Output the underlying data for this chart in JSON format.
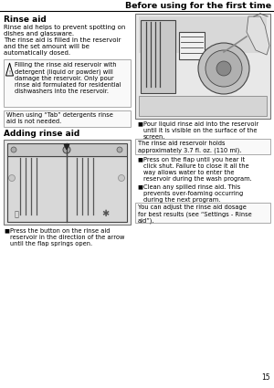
{
  "page_title": "Before using for the first time",
  "bg_color": "#ffffff",
  "section1_title": "Rinse aid",
  "section1_body": "Rinse aid helps to prevent spotting on\ndishes and glassware.\nThe rinse aid is filled in the reservoir\nand the set amount will be\nautomatically dosed.",
  "warning_text": "Filling the rinse aid reservoir with\ndetergent (liquid or powder) will\ndamage the reservoir. Only pour\nrinse aid formulated for residential\ndishwashers into the reservoir.",
  "tab_box_text": "When using “Tab” detergents rinse\naid is not needed.",
  "section2_title": "Adding rinse aid",
  "bullet1": "Press the button on the rinse aid\nreservoir in the direction of the arrow\nuntil the flap springs open.",
  "right_bullet1": "Pour liquid rinse aid into the reservoir\nuntil it is visible on the surface of the\nscreen.",
  "info_box1": "The rinse aid reservoir holds\napproximately 3.7 fl. oz. (110 ml).",
  "right_bullet2": "Press on the flap until you hear it\nclick shut. Failure to close it all the\nway allows water to enter the\nreservoir during the wash program.",
  "right_bullet3": "Clean any spilled rinse aid. This\nprevents over-foaming occurring\nduring the next program.",
  "info_box2": "You can adjust the rinse aid dosage\nfor best results (see “Settings - Rinse\naid”).",
  "page_number": "15",
  "box_border_color": "#aaaaaa",
  "light_gray": "#e8e8e8",
  "mid_gray": "#cccccc",
  "dark_gray": "#555555"
}
